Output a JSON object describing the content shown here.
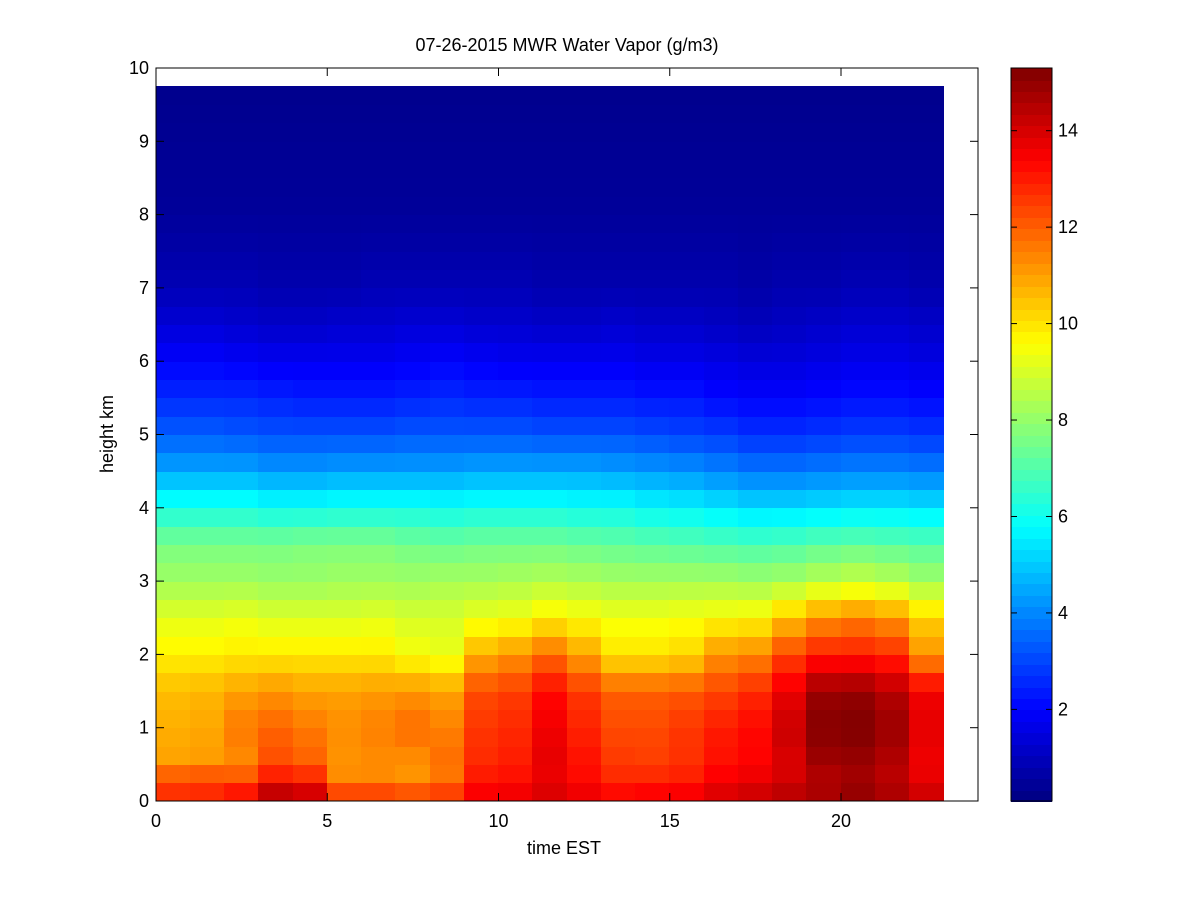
{
  "chart_data": {
    "type": "heatmap",
    "title": "07-26-2015 MWR Water Vapor (g/m3)",
    "xlabel": "time EST",
    "ylabel": "height km",
    "xlim": [
      0,
      24
    ],
    "ylim": [
      0,
      10
    ],
    "xticks": [
      0,
      5,
      10,
      15,
      20
    ],
    "yticks": [
      0,
      1,
      2,
      3,
      4,
      5,
      6,
      7,
      8,
      9,
      10
    ],
    "colorbar": {
      "clim": [
        0.1,
        15.3
      ],
      "ticks": [
        2,
        4,
        6,
        8,
        10,
        12,
        14
      ],
      "colormap": "jet"
    },
    "x_centers": [
      0.5,
      1.5,
      2.5,
      3.5,
      4.5,
      5.5,
      6.5,
      7.5,
      8.5,
      9.5,
      10.5,
      11.5,
      12.5,
      13.5,
      14.5,
      15.5,
      16.5,
      17.5,
      18.5,
      19.5,
      20.5,
      21.5,
      22.5
    ],
    "profile_heights": [
      0.0,
      0.25,
      0.5,
      1.0,
      1.5,
      2.0,
      2.5,
      3.0,
      3.5,
      4.0,
      4.5,
      5.0,
      5.5,
      6.0,
      6.5,
      7.0,
      8.0,
      9.75
    ],
    "values": [
      [
        12.5,
        12.8,
        11.0,
        10.8,
        10.6,
        9.8,
        9.2,
        8.2,
        7.6,
        6.2,
        4.5,
        3.4,
        2.6,
        2.0,
        1.4,
        0.9,
        0.5,
        0.3
      ],
      [
        12.6,
        12.9,
        11.1,
        10.9,
        10.7,
        9.8,
        9.2,
        8.2,
        7.6,
        6.2,
        4.5,
        3.4,
        2.6,
        2.0,
        1.4,
        0.9,
        0.5,
        0.3
      ],
      [
        13.5,
        12.6,
        11.3,
        11.6,
        11.0,
        9.9,
        9.3,
        8.2,
        7.6,
        6.2,
        4.5,
        3.3,
        2.6,
        1.9,
        1.3,
        0.9,
        0.5,
        0.3
      ],
      [
        15.0,
        13.5,
        12.3,
        11.9,
        11.2,
        9.9,
        9.1,
        8.1,
        7.6,
        6.0,
        4.3,
        3.2,
        2.5,
        1.8,
        1.2,
        0.8,
        0.5,
        0.3
      ],
      [
        14.7,
        13.3,
        12.0,
        11.6,
        11.0,
        9.9,
        9.1,
        8.1,
        7.7,
        6.0,
        4.3,
        3.2,
        2.4,
        1.8,
        1.2,
        0.8,
        0.5,
        0.3
      ],
      [
        13.2,
        11.4,
        11.2,
        11.3,
        11.0,
        9.9,
        9.1,
        8.2,
        7.7,
        6.1,
        4.4,
        3.2,
        2.4,
        1.8,
        1.3,
        0.8,
        0.5,
        0.3
      ],
      [
        13.2,
        11.4,
        11.3,
        11.5,
        11.1,
        9.9,
        9.2,
        8.2,
        7.7,
        6.1,
        4.4,
        3.2,
        2.4,
        1.8,
        1.3,
        0.9,
        0.5,
        0.3
      ],
      [
        13.0,
        11.2,
        11.2,
        11.8,
        11.2,
        9.5,
        9.0,
        8.2,
        7.5,
        6.1,
        4.4,
        3.3,
        2.5,
        1.9,
        1.4,
        0.9,
        0.5,
        0.3
      ],
      [
        13.3,
        11.5,
        11.8,
        11.5,
        11.0,
        9.3,
        9.0,
        8.3,
        7.4,
        6.0,
        4.4,
        3.3,
        2.6,
        2.0,
        1.4,
        0.9,
        0.5,
        0.3
      ],
      [
        13.7,
        13.2,
        12.8,
        12.6,
        12.3,
        10.8,
        9.3,
        8.3,
        7.5,
        6.1,
        4.5,
        3.3,
        2.5,
        1.9,
        1.3,
        0.9,
        0.5,
        0.3
      ],
      [
        13.8,
        13.3,
        13.0,
        12.8,
        12.5,
        11.2,
        9.4,
        8.4,
        7.5,
        6.1,
        4.5,
        3.3,
        2.5,
        1.8,
        1.3,
        0.9,
        0.5,
        0.3
      ],
      [
        14.2,
        13.6,
        13.8,
        13.6,
        13.3,
        11.8,
        9.8,
        8.5,
        7.5,
        6.1,
        4.5,
        3.2,
        2.4,
        1.8,
        1.2,
        0.8,
        0.5,
        0.3
      ],
      [
        13.9,
        13.3,
        13.2,
        12.9,
        12.6,
        11.0,
        9.6,
        8.4,
        7.4,
        6.0,
        4.5,
        3.2,
        2.4,
        1.8,
        1.2,
        0.8,
        0.5,
        0.3
      ],
      [
        13.6,
        12.9,
        12.6,
        12.3,
        12.0,
        10.0,
        9.4,
        8.3,
        7.3,
        6.0,
        4.4,
        3.2,
        2.4,
        1.8,
        1.3,
        0.8,
        0.5,
        0.3
      ],
      [
        13.7,
        13.0,
        12.5,
        12.3,
        12.0,
        10.0,
        9.4,
        8.3,
        7.2,
        5.8,
        4.3,
        3.1,
        2.3,
        1.7,
        1.2,
        0.8,
        0.5,
        0.3
      ],
      [
        13.8,
        13.1,
        12.7,
        12.6,
        12.1,
        10.2,
        9.5,
        8.3,
        7.1,
        5.7,
        4.2,
        3.0,
        2.3,
        1.7,
        1.2,
        0.8,
        0.5,
        0.3
      ],
      [
        14.1,
        13.6,
        13.2,
        13.0,
        12.4,
        11.2,
        9.6,
        8.3,
        7.0,
        5.5,
        4.0,
        2.9,
        2.1,
        1.6,
        1.1,
        0.8,
        0.5,
        0.3
      ],
      [
        14.3,
        13.8,
        13.4,
        13.3,
        12.8,
        11.4,
        9.7,
        8.2,
        6.9,
        5.3,
        3.8,
        2.7,
        2.0,
        1.5,
        1.0,
        0.7,
        0.5,
        0.3
      ],
      [
        14.6,
        14.1,
        13.9,
        14.2,
        13.7,
        12.4,
        10.5,
        8.3,
        7.0,
        5.3,
        3.8,
        2.7,
        2.0,
        1.5,
        1.1,
        0.8,
        0.5,
        0.3
      ],
      [
        14.9,
        14.4,
        14.8,
        15.2,
        14.9,
        13.0,
        11.2,
        8.6,
        7.2,
        5.4,
        3.9,
        2.8,
        2.1,
        1.6,
        1.2,
        0.8,
        0.5,
        0.3
      ],
      [
        15.2,
        14.7,
        14.9,
        15.3,
        15.0,
        13.0,
        11.5,
        8.8,
        7.3,
        5.5,
        4.0,
        2.9,
        2.2,
        1.7,
        1.3,
        0.9,
        0.5,
        0.3
      ],
      [
        14.8,
        14.4,
        14.5,
        14.9,
        14.5,
        12.8,
        11.2,
        8.6,
        7.2,
        5.5,
        4.0,
        2.9,
        2.2,
        1.7,
        1.3,
        0.9,
        0.5,
        0.3
      ],
      [
        14.3,
        13.8,
        13.6,
        13.8,
        13.6,
        11.2,
        10.3,
        8.2,
        7.1,
        5.4,
        3.9,
        2.8,
        2.1,
        1.6,
        1.2,
        0.8,
        0.5,
        0.3
      ]
    ]
  }
}
